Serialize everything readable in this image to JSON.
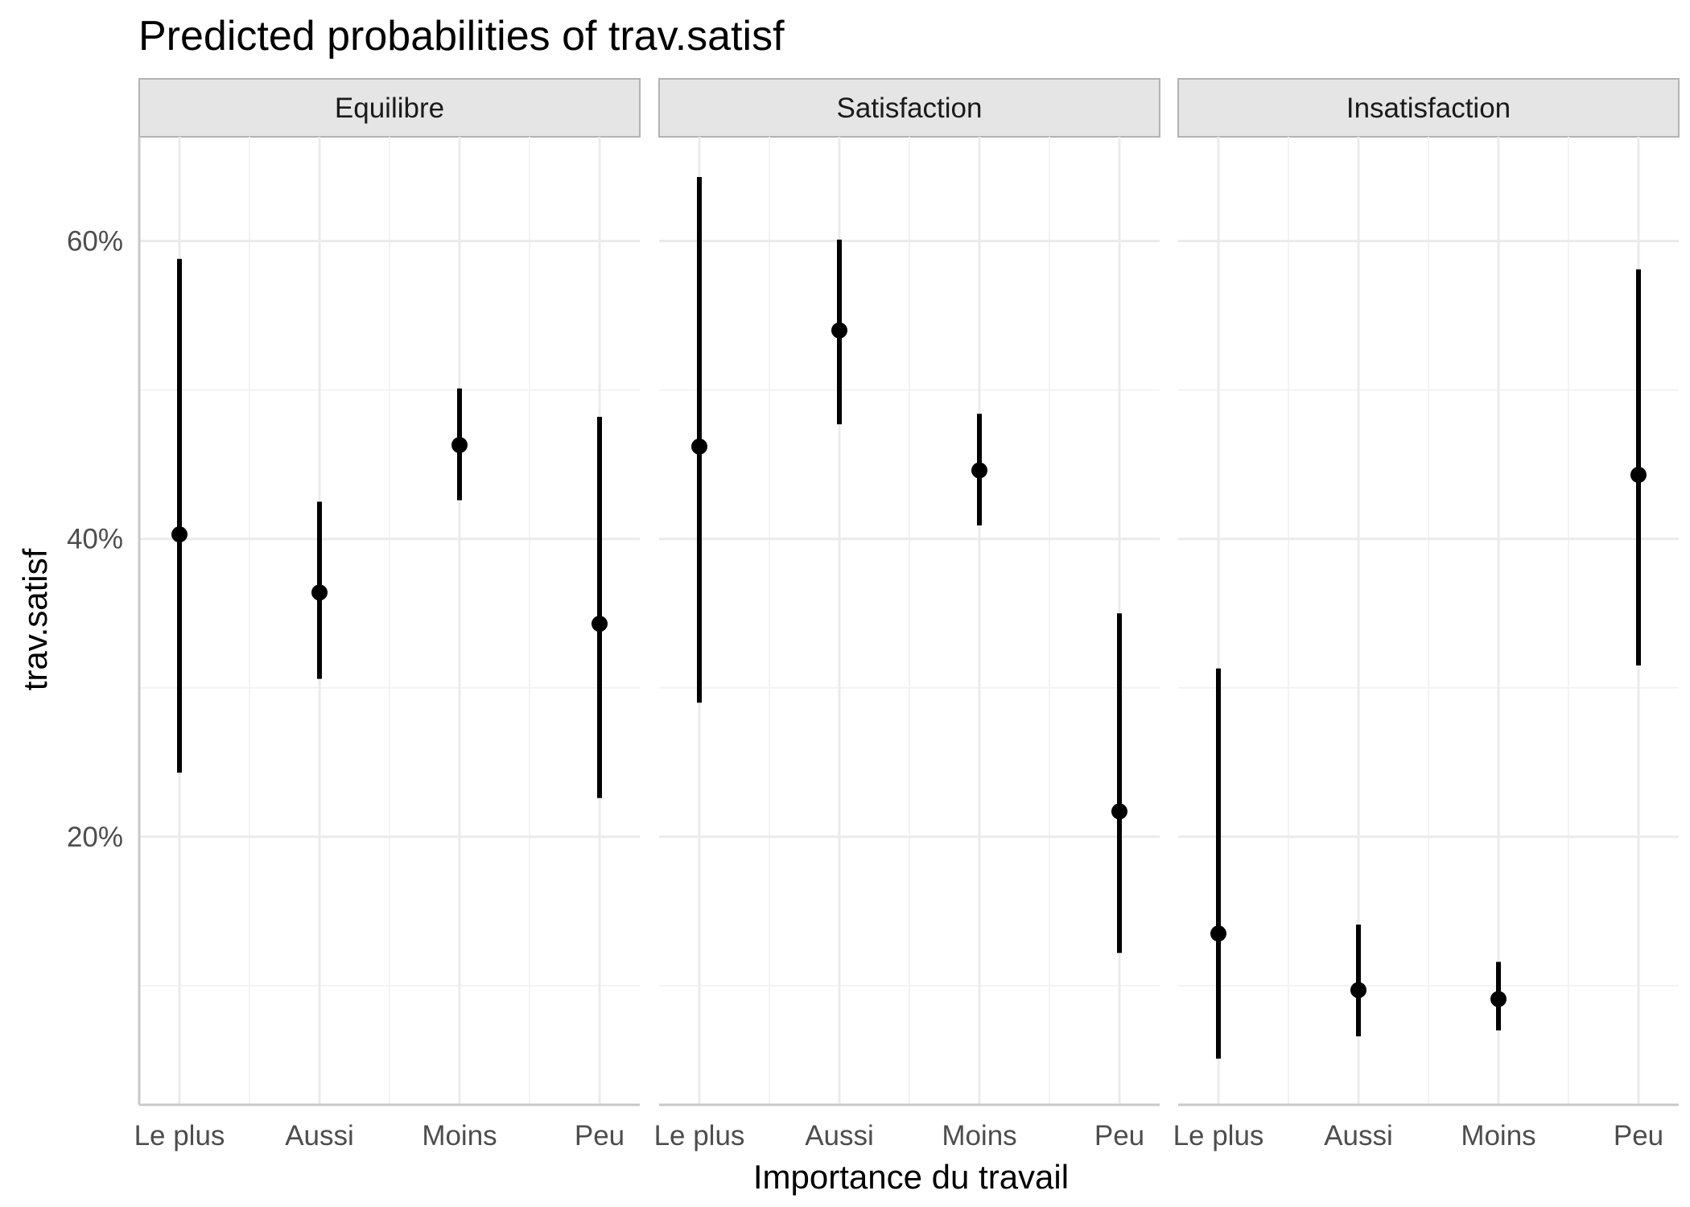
{
  "chart_data": {
    "type": "scatter",
    "variant": "point-range (estimate with confidence interval), faceted",
    "title": "Predicted probabilities of trav.satisf",
    "xlabel": "Importance du travail",
    "ylabel": "trav.satisf",
    "categories": [
      "Le plus",
      "Aussi",
      "Moins",
      "Peu"
    ],
    "y_ticks": [
      0.2,
      0.4,
      0.6
    ],
    "y_tick_labels": [
      "20%",
      "40%",
      "60%"
    ],
    "ylim": [
      0.02,
      0.67
    ],
    "grid": true,
    "facets": [
      {
        "name": "Equilibre",
        "estimate": [
          0.403,
          0.364,
          0.463,
          0.343
        ],
        "lower": [
          0.243,
          0.306,
          0.426,
          0.226
        ],
        "upper": [
          0.588,
          0.425,
          0.501,
          0.482
        ]
      },
      {
        "name": "Satisfaction",
        "estimate": [
          0.462,
          0.54,
          0.446,
          0.217
        ],
        "lower": [
          0.29,
          0.477,
          0.409,
          0.122
        ],
        "upper": [
          0.643,
          0.601,
          0.484,
          0.35
        ]
      },
      {
        "name": "Insatisfaction",
        "estimate": [
          0.135,
          0.097,
          0.091,
          0.443
        ],
        "lower": [
          0.051,
          0.066,
          0.07,
          0.315
        ],
        "upper": [
          0.313,
          0.141,
          0.116,
          0.581
        ]
      }
    ],
    "colors": {
      "strip_fill": "#e5e5e5",
      "strip_border": "#b3b3b3",
      "grid_major": "#ebebeb",
      "grid_minor": "#f3f3f3",
      "axis_line": "#c8c8c8",
      "mark": "#000000"
    }
  }
}
